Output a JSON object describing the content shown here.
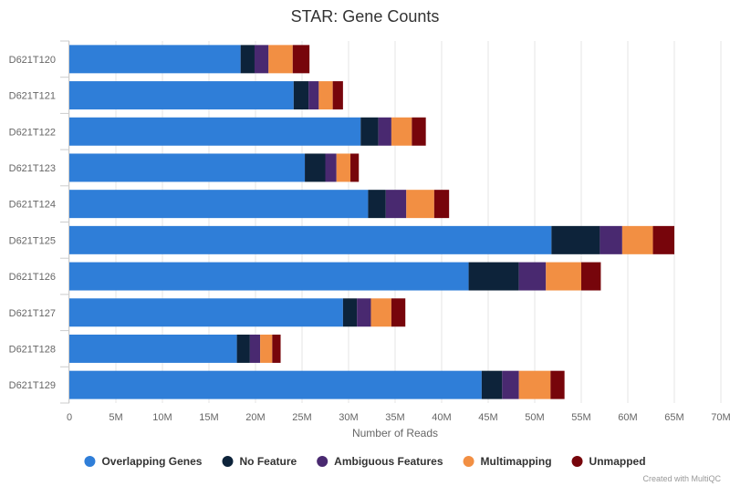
{
  "chart_data": {
    "type": "bar",
    "orientation": "horizontal",
    "stacked": true,
    "title": "STAR: Gene Counts",
    "xlabel": "Number of Reads",
    "ylabel": "",
    "xlim": [
      0,
      70000000
    ],
    "x_ticks": [
      "0",
      "5M",
      "10M",
      "15M",
      "20M",
      "25M",
      "30M",
      "35M",
      "40M",
      "45M",
      "50M",
      "55M",
      "60M",
      "65M",
      "70M"
    ],
    "categories": [
      "D621T120",
      "D621T121",
      "D621T122",
      "D621T123",
      "D621T124",
      "D621T125",
      "D621T126",
      "D621T127",
      "D621T128",
      "D621T129"
    ],
    "series": [
      {
        "name": "Overlapping Genes",
        "color": "#2f7ed8",
        "values": [
          18400000,
          24100000,
          31300000,
          25300000,
          32100000,
          51800000,
          42900000,
          29400000,
          18000000,
          44300000
        ]
      },
      {
        "name": "No Feature",
        "color": "#0d233a",
        "values": [
          1500000,
          1600000,
          1900000,
          2200000,
          1900000,
          5200000,
          5400000,
          1500000,
          1400000,
          2200000
        ]
      },
      {
        "name": "Ambiguous Features",
        "color": "#492970",
        "values": [
          1500000,
          1100000,
          1400000,
          1200000,
          2200000,
          2400000,
          2900000,
          1500000,
          1100000,
          1800000
        ]
      },
      {
        "name": "Multimapping",
        "color": "#f28f43",
        "values": [
          2600000,
          1500000,
          2200000,
          1500000,
          3000000,
          3300000,
          3800000,
          2200000,
          1300000,
          3400000
        ]
      },
      {
        "name": "Unmapped",
        "color": "#77050b",
        "values": [
          1800000,
          1100000,
          1500000,
          900000,
          1600000,
          2300000,
          2100000,
          1500000,
          900000,
          1500000
        ]
      }
    ],
    "grid": true,
    "legend_position": "bottom"
  },
  "credit": "Created with MultiQC"
}
